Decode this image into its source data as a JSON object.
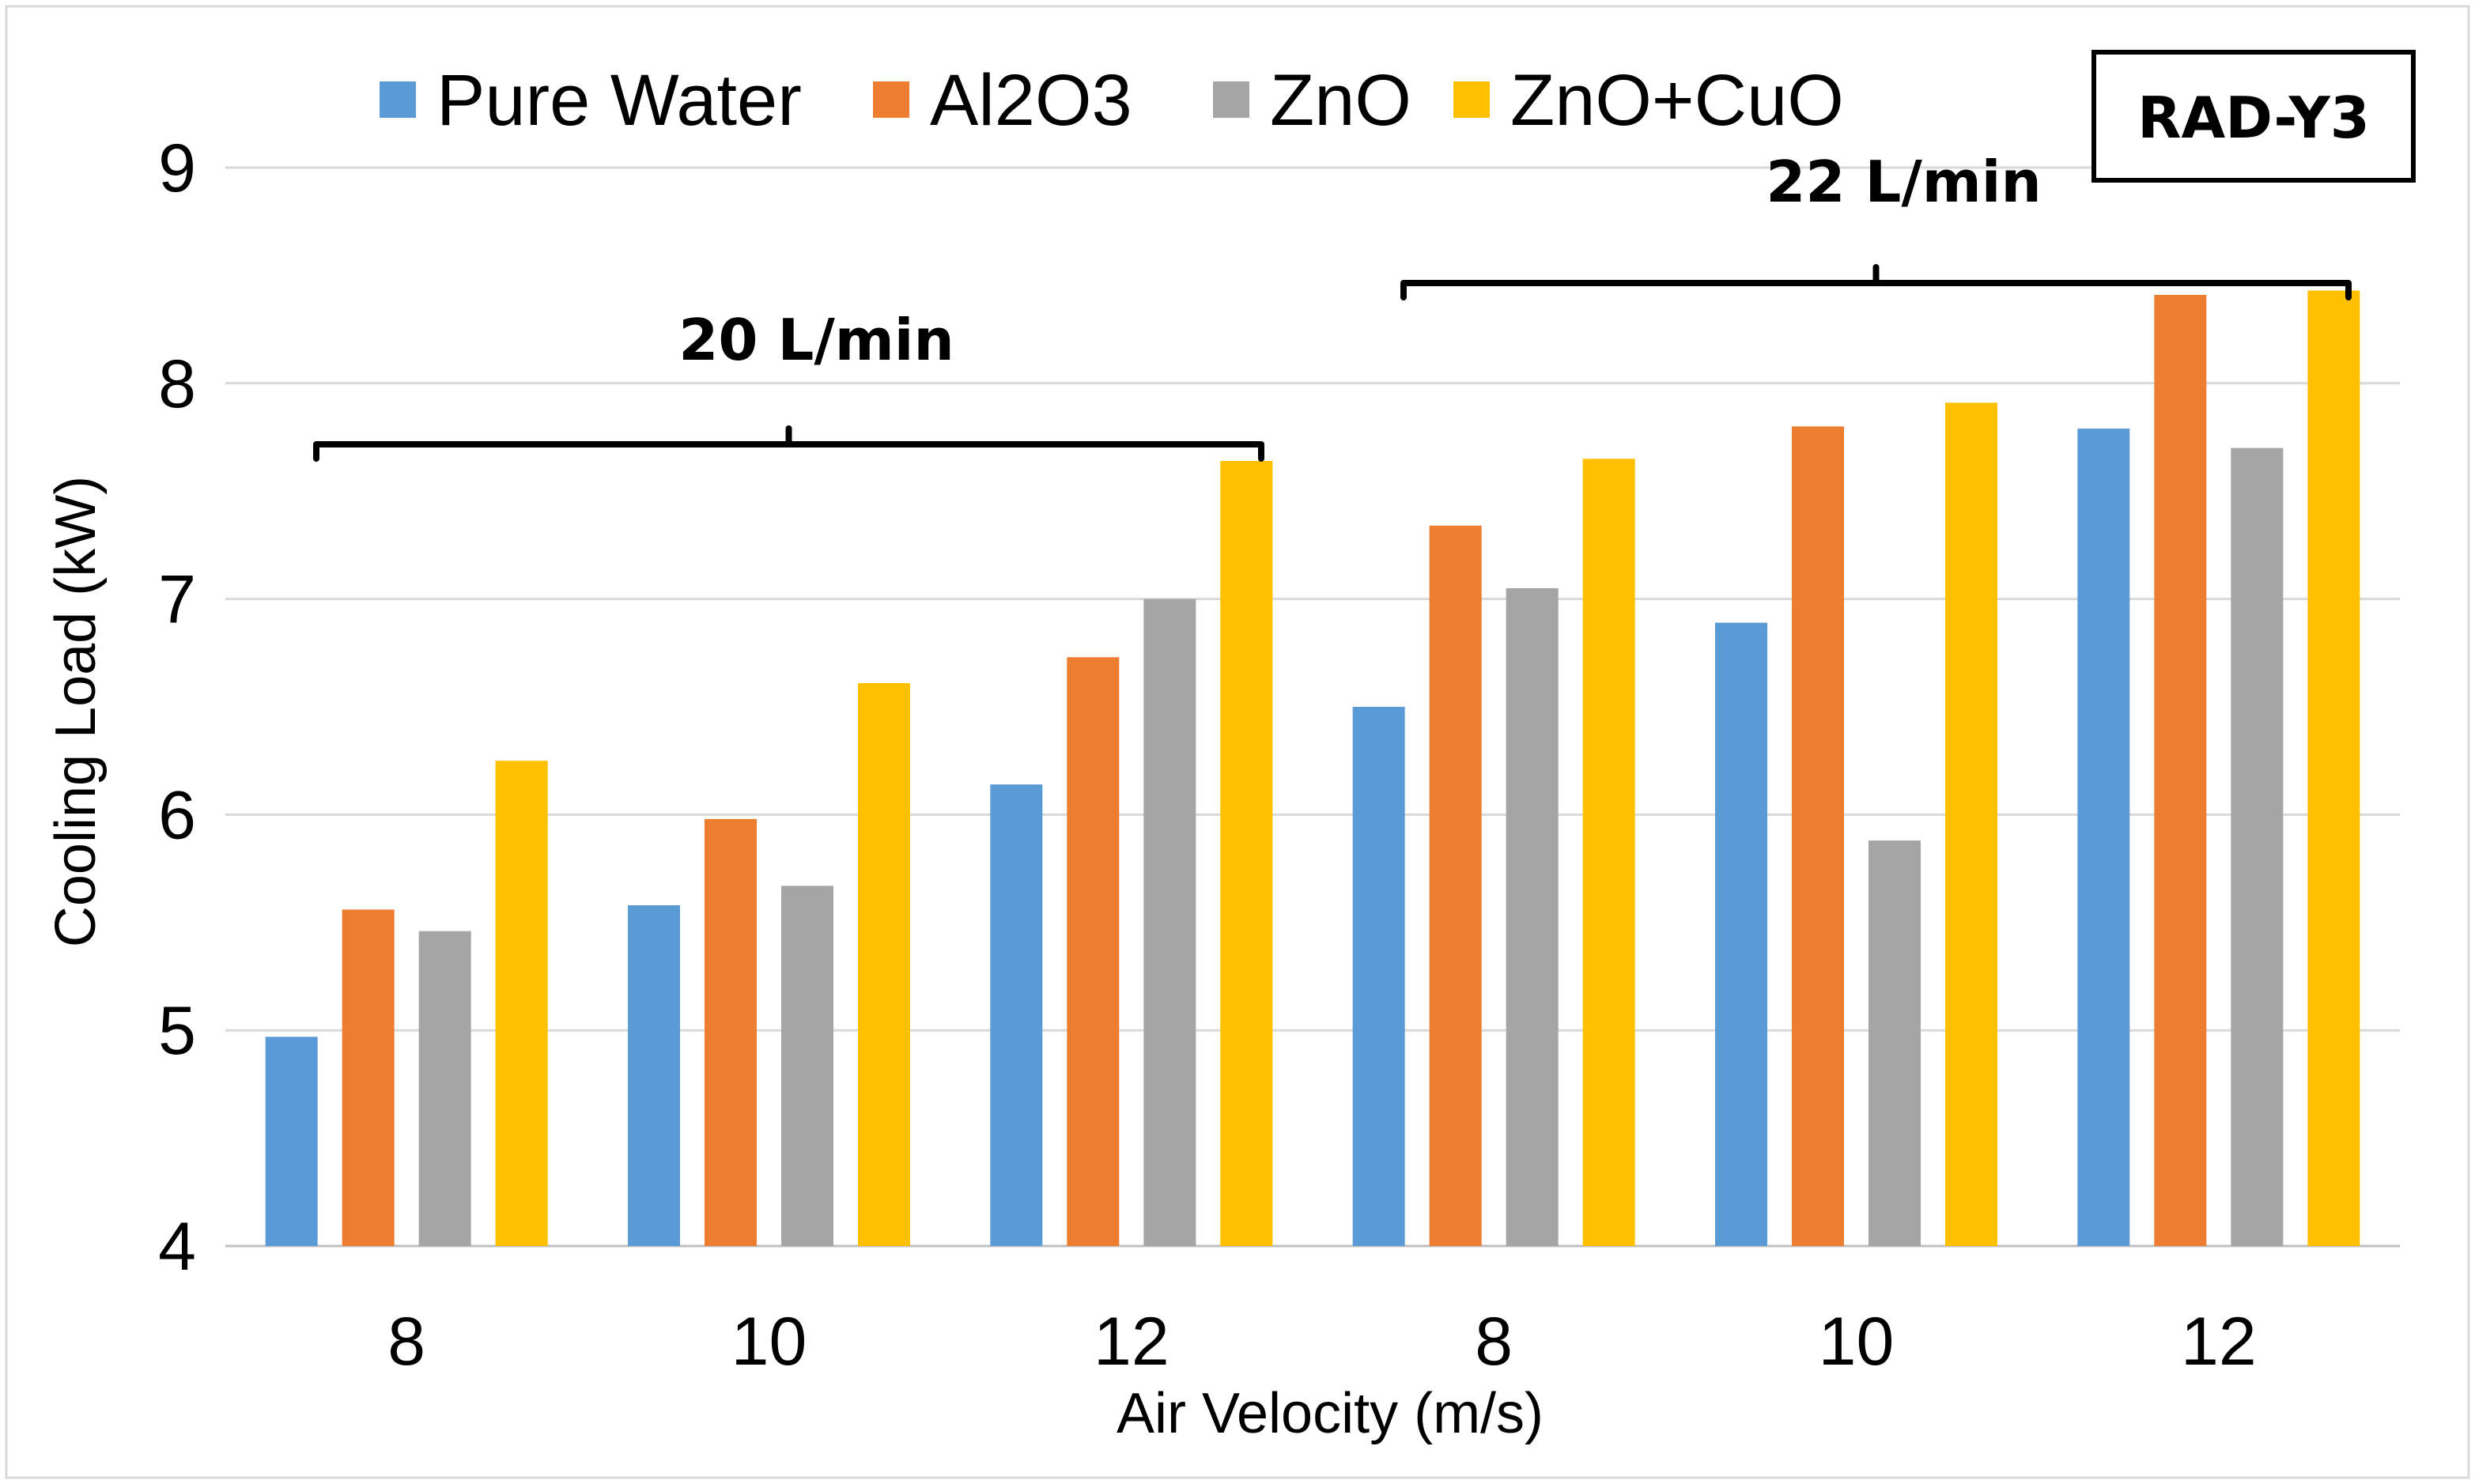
{
  "chart_data": {
    "type": "bar",
    "title": "",
    "badge": "RAD-Y3",
    "xlabel": "Air Velocity (m/s)",
    "ylabel": "Cooling Load (kW)",
    "ylim": [
      4,
      9
    ],
    "yticks": [
      4,
      5,
      6,
      7,
      8,
      9
    ],
    "grid": true,
    "legend_position": "top",
    "categories": [
      "8",
      "10",
      "12",
      "8",
      "10",
      "12"
    ],
    "groups": [
      {
        "label": "20 L/min",
        "categories": [
          0,
          1,
          2
        ]
      },
      {
        "label": "22 L/min",
        "categories": [
          3,
          4,
          5
        ]
      }
    ],
    "series": [
      {
        "name": "Pure Water",
        "color": "#5B9BD5",
        "values": [
          4.97,
          5.58,
          6.14,
          6.5,
          6.89,
          7.79
        ]
      },
      {
        "name": "Al2O3",
        "color": "#ED7D31",
        "values": [
          5.56,
          5.98,
          6.73,
          7.34,
          7.8,
          8.41
        ]
      },
      {
        "name": "ZnO",
        "color": "#A5A5A5",
        "values": [
          5.46,
          5.67,
          7.0,
          7.05,
          5.88,
          7.7
        ]
      },
      {
        "name": "ZnO+CuO",
        "color": "#FFC000",
        "values": [
          6.25,
          6.61,
          7.64,
          7.65,
          7.91,
          8.43
        ]
      }
    ]
  }
}
